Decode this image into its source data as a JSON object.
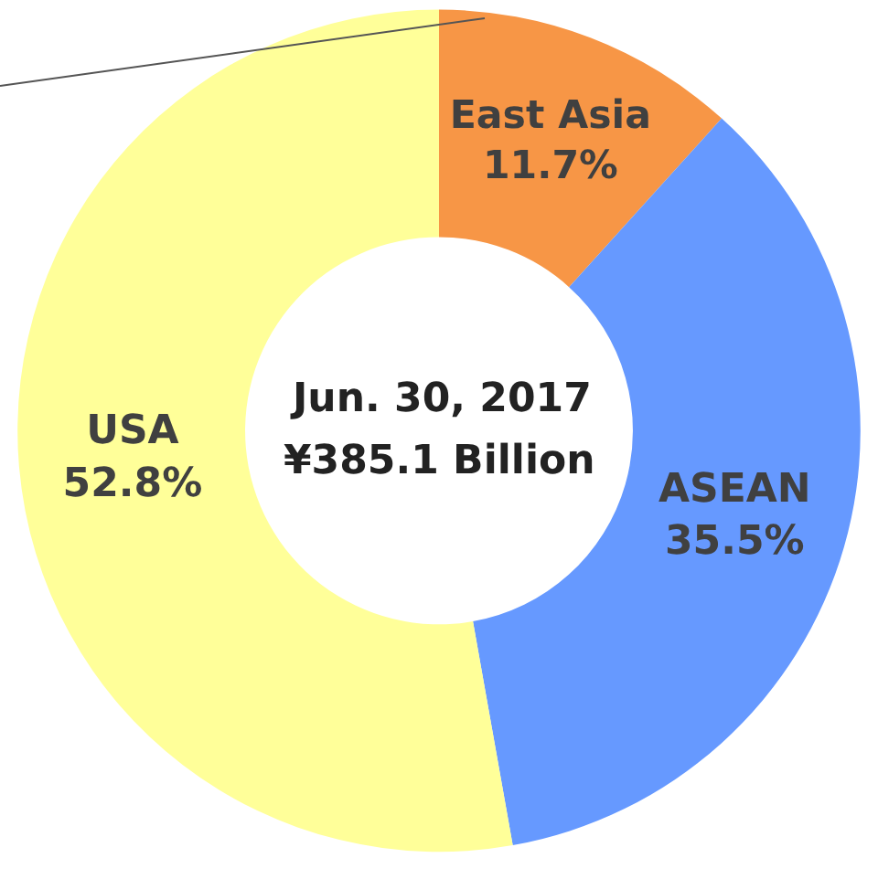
{
  "chart_data": {
    "type": "donut",
    "categories": [
      "East Asia",
      "ASEAN",
      "USA"
    ],
    "values": [
      11.7,
      35.5,
      52.8
    ],
    "value_labels": [
      "11.7%",
      "35.5%",
      "52.8%"
    ],
    "colors": [
      "#f79646",
      "#6699ff",
      "#ffff99"
    ],
    "annotations": [
      "Jun. 30, 2017",
      "¥385.1 Billion"
    ],
    "legend": false
  }
}
